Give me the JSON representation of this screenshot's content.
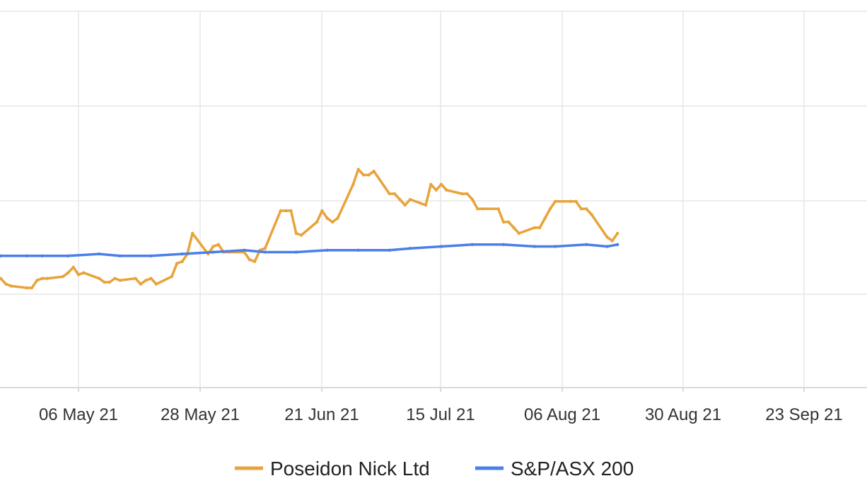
{
  "chart_data": {
    "type": "line",
    "title": "",
    "xlabel": "",
    "ylabel": "",
    "grid": true,
    "legend_position": "bottom",
    "y_relative_range": [
      0.4,
      2.4
    ],
    "x_ticks": [
      {
        "date": "2021-05-06",
        "label": "06 May 21"
      },
      {
        "date": "2021-05-28",
        "label": "28 May 21"
      },
      {
        "date": "2021-06-21",
        "label": "21 Jun 21"
      },
      {
        "date": "2021-07-15",
        "label": "15 Jul 21"
      },
      {
        "date": "2021-08-06",
        "label": "06 Aug 21"
      },
      {
        "date": "2021-08-30",
        "label": "30 Aug 21"
      },
      {
        "date": "2021-09-23",
        "label": "23 Sep 21"
      }
    ],
    "series": [
      {
        "name": "Poseidon Nick Ltd",
        "color": "#E8A33A",
        "points": [
          [
            "2021-04-21",
            0.98
          ],
          [
            "2021-04-22",
            0.95
          ],
          [
            "2021-04-23",
            0.94
          ],
          [
            "2021-04-26",
            0.93
          ],
          [
            "2021-04-27",
            0.93
          ],
          [
            "2021-04-28",
            0.97
          ],
          [
            "2021-04-29",
            0.98
          ],
          [
            "2021-04-30",
            0.98
          ],
          [
            "2021-05-03",
            0.99
          ],
          [
            "2021-05-04",
            1.01
          ],
          [
            "2021-05-05",
            1.04
          ],
          [
            "2021-05-06",
            1.0
          ],
          [
            "2021-05-07",
            1.01
          ],
          [
            "2021-05-10",
            0.98
          ],
          [
            "2021-05-11",
            0.96
          ],
          [
            "2021-05-12",
            0.96
          ],
          [
            "2021-05-13",
            0.98
          ],
          [
            "2021-05-14",
            0.97
          ],
          [
            "2021-05-17",
            0.98
          ],
          [
            "2021-05-18",
            0.95
          ],
          [
            "2021-05-19",
            0.97
          ],
          [
            "2021-05-20",
            0.98
          ],
          [
            "2021-05-21",
            0.95
          ],
          [
            "2021-05-24",
            0.99
          ],
          [
            "2021-05-25",
            1.06
          ],
          [
            "2021-05-26",
            1.07
          ],
          [
            "2021-05-27",
            1.11
          ],
          [
            "2021-05-28",
            1.22
          ],
          [
            "2021-05-31",
            1.11
          ],
          [
            "2021-06-01",
            1.15
          ],
          [
            "2021-06-02",
            1.16
          ],
          [
            "2021-06-03",
            1.12
          ],
          [
            "2021-06-04",
            1.12
          ],
          [
            "2021-06-07",
            1.12
          ],
          [
            "2021-06-08",
            1.08
          ],
          [
            "2021-06-09",
            1.07
          ],
          [
            "2021-06-10",
            1.13
          ],
          [
            "2021-06-11",
            1.14
          ],
          [
            "2021-06-14",
            1.34
          ],
          [
            "2021-06-15",
            1.34
          ],
          [
            "2021-06-16",
            1.34
          ],
          [
            "2021-06-17",
            1.22
          ],
          [
            "2021-06-18",
            1.21
          ],
          [
            "2021-06-21",
            1.28
          ],
          [
            "2021-06-22",
            1.34
          ],
          [
            "2021-06-23",
            1.3
          ],
          [
            "2021-06-24",
            1.28
          ],
          [
            "2021-06-25",
            1.3
          ],
          [
            "2021-06-28",
            1.48
          ],
          [
            "2021-06-29",
            1.56
          ],
          [
            "2021-06-30",
            1.53
          ],
          [
            "2021-07-01",
            1.53
          ],
          [
            "2021-07-02",
            1.55
          ],
          [
            "2021-07-05",
            1.43
          ],
          [
            "2021-07-06",
            1.43
          ],
          [
            "2021-07-07",
            1.4
          ],
          [
            "2021-07-08",
            1.37
          ],
          [
            "2021-07-09",
            1.4
          ],
          [
            "2021-07-12",
            1.37
          ],
          [
            "2021-07-13",
            1.48
          ],
          [
            "2021-07-14",
            1.45
          ],
          [
            "2021-07-15",
            1.48
          ],
          [
            "2021-07-16",
            1.45
          ],
          [
            "2021-07-19",
            1.43
          ],
          [
            "2021-07-20",
            1.43
          ],
          [
            "2021-07-21",
            1.4
          ],
          [
            "2021-07-22",
            1.35
          ],
          [
            "2021-07-23",
            1.35
          ],
          [
            "2021-07-26",
            1.35
          ],
          [
            "2021-07-27",
            1.28
          ],
          [
            "2021-07-28",
            1.28
          ],
          [
            "2021-07-29",
            1.25
          ],
          [
            "2021-07-30",
            1.22
          ],
          [
            "2021-08-02",
            1.25
          ],
          [
            "2021-08-03",
            1.25
          ],
          [
            "2021-08-04",
            1.3
          ],
          [
            "2021-08-05",
            1.35
          ],
          [
            "2021-08-06",
            1.39
          ],
          [
            "2021-08-09",
            1.39
          ],
          [
            "2021-08-10",
            1.39
          ],
          [
            "2021-08-11",
            1.35
          ],
          [
            "2021-08-12",
            1.35
          ],
          [
            "2021-08-13",
            1.32
          ],
          [
            "2021-08-16",
            1.2
          ],
          [
            "2021-08-17",
            1.18
          ],
          [
            "2021-08-18",
            1.22
          ]
        ]
      },
      {
        "name": "S&P/ASX 200",
        "color": "#4A7FE8",
        "points": [
          [
            "2021-04-21",
            1.1
          ],
          [
            "2021-04-26",
            1.1
          ],
          [
            "2021-04-29",
            1.1
          ],
          [
            "2021-05-04",
            1.1
          ],
          [
            "2021-05-10",
            1.11
          ],
          [
            "2021-05-14",
            1.1
          ],
          [
            "2021-05-20",
            1.1
          ],
          [
            "2021-05-26",
            1.11
          ],
          [
            "2021-06-01",
            1.12
          ],
          [
            "2021-06-07",
            1.13
          ],
          [
            "2021-06-11",
            1.12
          ],
          [
            "2021-06-17",
            1.12
          ],
          [
            "2021-06-23",
            1.13
          ],
          [
            "2021-06-29",
            1.13
          ],
          [
            "2021-07-05",
            1.13
          ],
          [
            "2021-07-09",
            1.14
          ],
          [
            "2021-07-15",
            1.15
          ],
          [
            "2021-07-21",
            1.16
          ],
          [
            "2021-07-27",
            1.16
          ],
          [
            "2021-08-02",
            1.15
          ],
          [
            "2021-08-06",
            1.15
          ],
          [
            "2021-08-12",
            1.16
          ],
          [
            "2021-08-16",
            1.15
          ],
          [
            "2021-08-18",
            1.16
          ]
        ]
      }
    ]
  },
  "legend": [
    {
      "label": "Poseidon Nick Ltd",
      "color": "#E8A33A"
    },
    {
      "label": "S&P/ASX 200",
      "color": "#4A7FE8"
    }
  ]
}
